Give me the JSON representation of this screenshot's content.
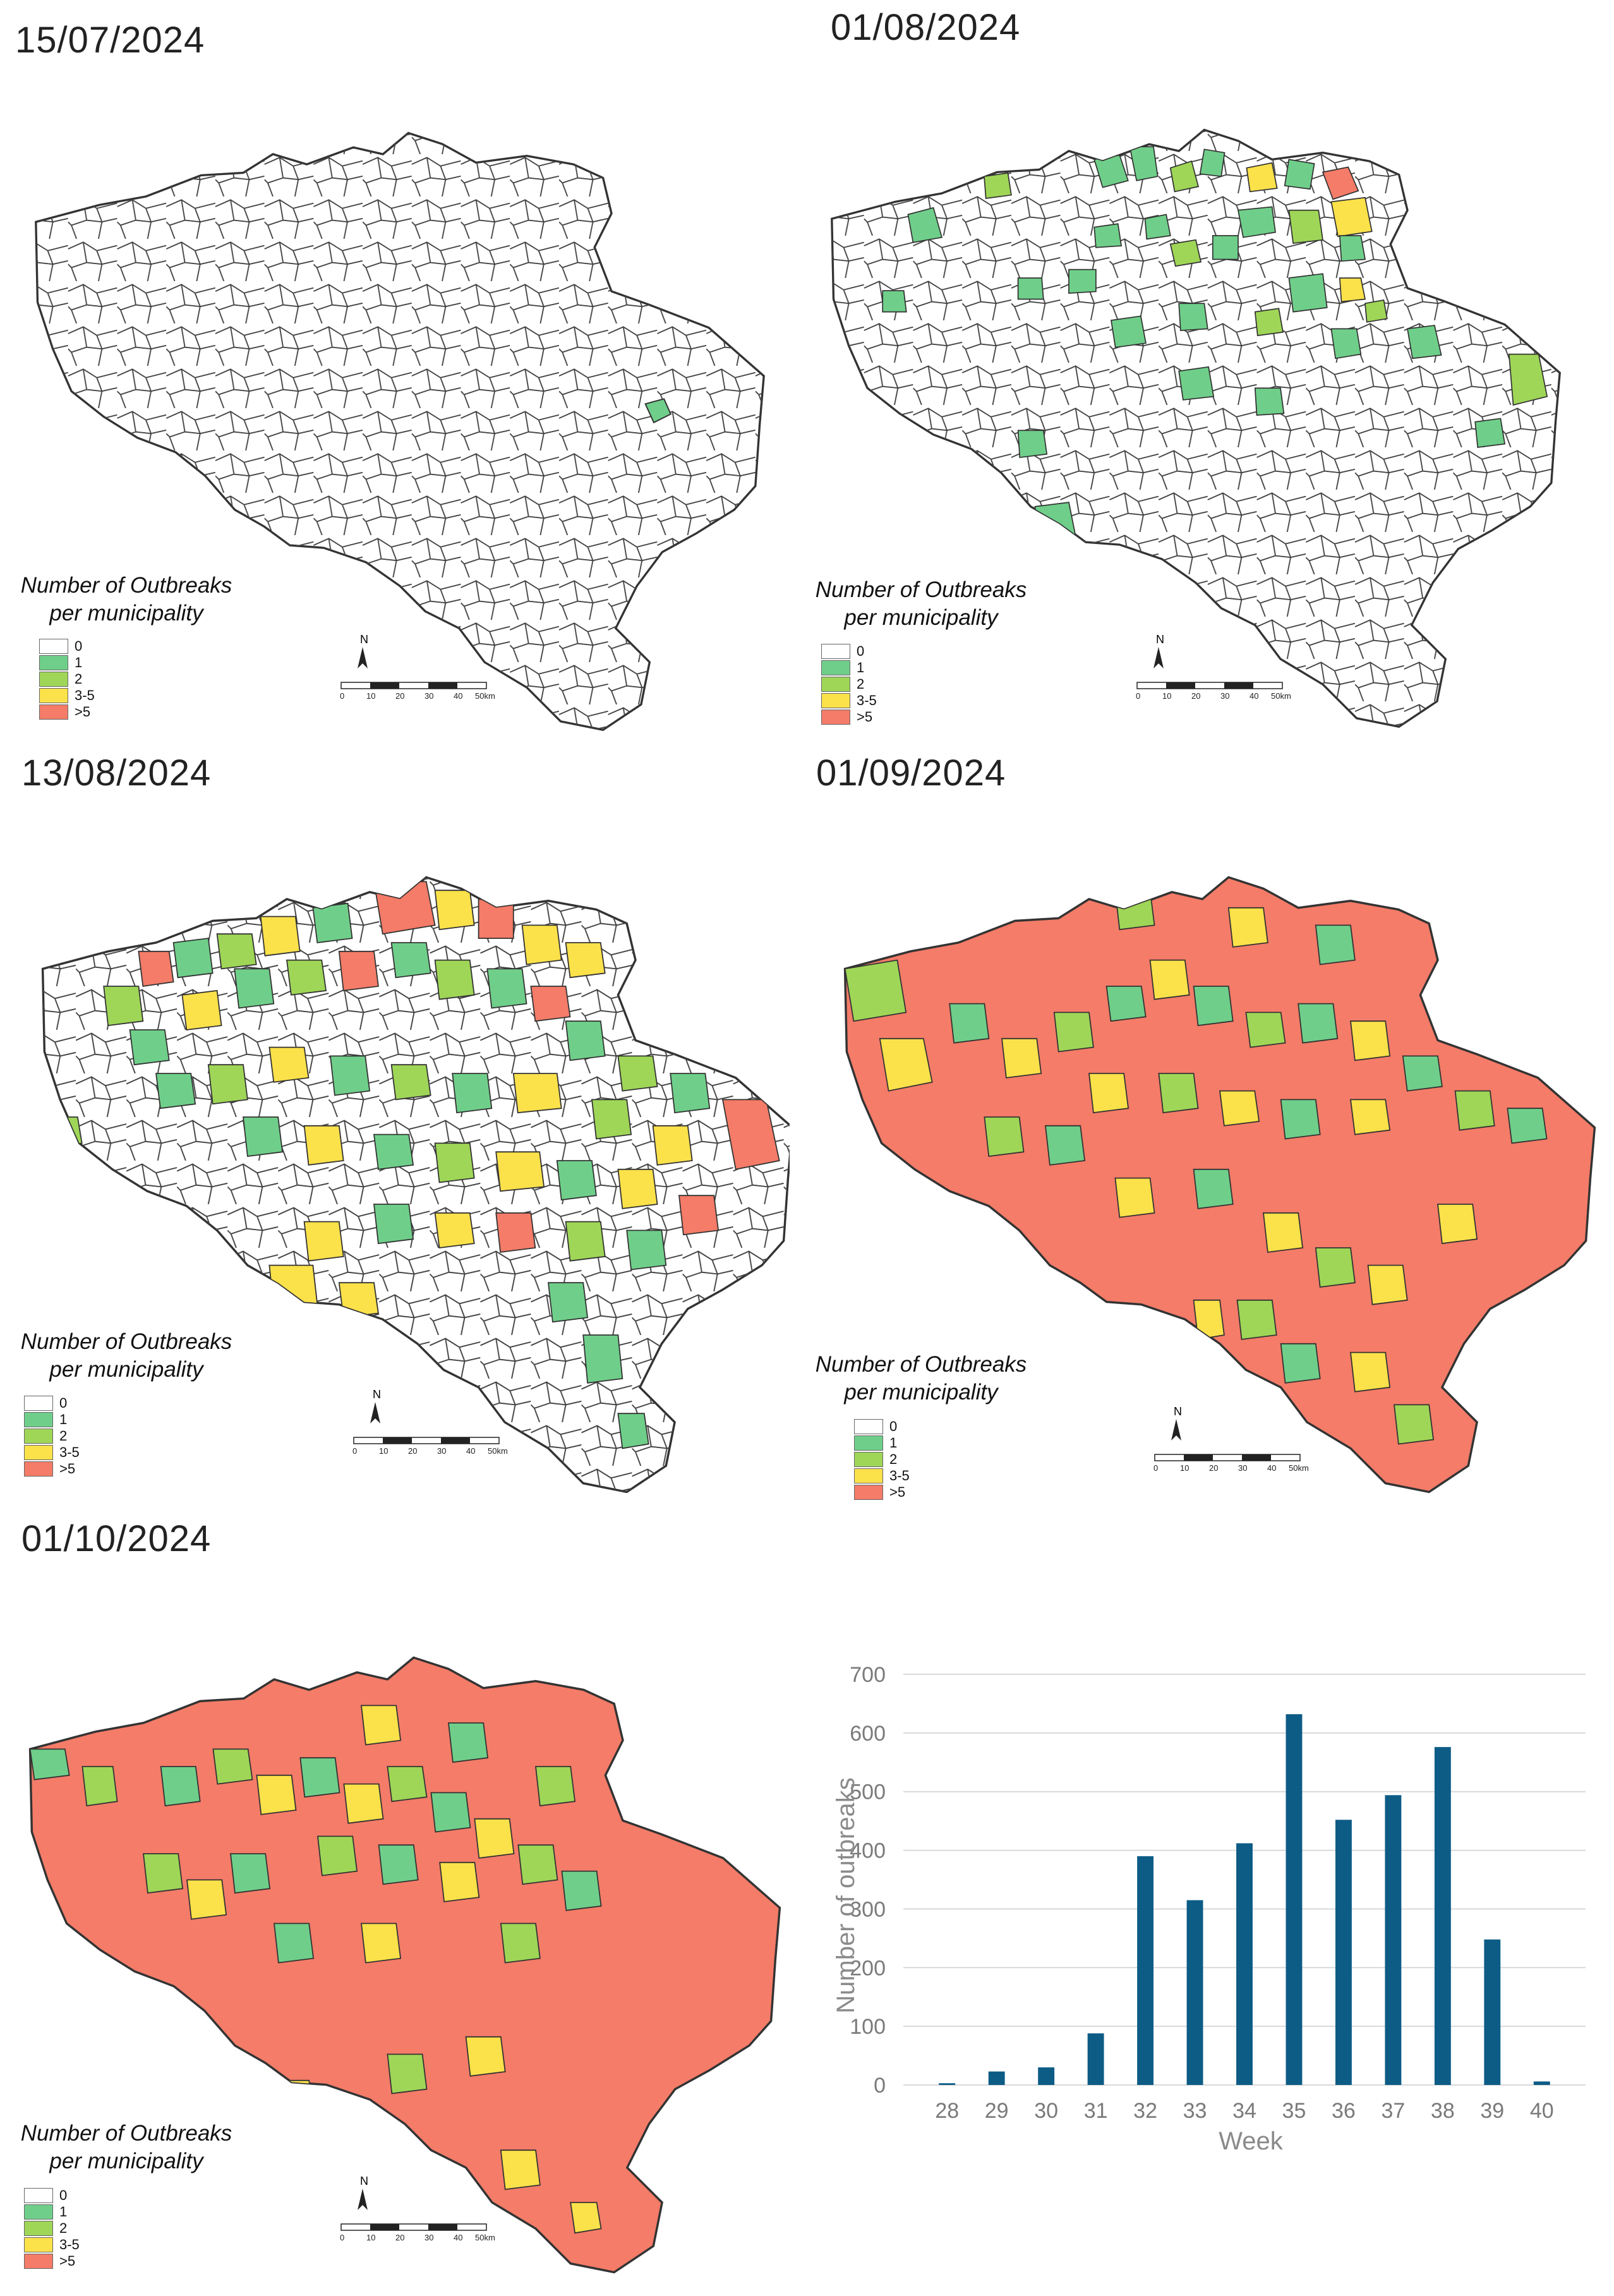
{
  "panels": [
    {
      "date": "15/07/2024"
    },
    {
      "date": "01/08/2024"
    },
    {
      "date": "13/08/2024"
    },
    {
      "date": "01/09/2024"
    },
    {
      "date": "01/10/2024"
    }
  ],
  "legend": {
    "title_line1": "Number of Outbreaks",
    "title_line2": "per municipality",
    "items": [
      {
        "label": "0",
        "color": "#ffffff"
      },
      {
        "label": "1",
        "color": "#6fcf8a"
      },
      {
        "label": "2",
        "color": "#9fd657"
      },
      {
        "label": "3-5",
        "color": "#fbe14a"
      },
      {
        "label": ">5",
        "color": "#f47c68"
      }
    ]
  },
  "scalebar": {
    "north": "N",
    "ticks": [
      "0",
      "10",
      "20",
      "30",
      "40",
      "50km"
    ]
  },
  "chart_data": {
    "type": "bar",
    "categories": [
      "28",
      "29",
      "30",
      "31",
      "32",
      "33",
      "34",
      "35",
      "36",
      "37",
      "38",
      "39",
      "40"
    ],
    "values": [
      3,
      23,
      30,
      88,
      390,
      315,
      412,
      632,
      452,
      494,
      576,
      248,
      6
    ],
    "xlabel": "Week",
    "ylabel": "Number of outbreaks",
    "ylim": [
      0,
      700
    ],
    "yticks": [
      "0",
      "100",
      "200",
      "300",
      "400",
      "500",
      "600",
      "700"
    ],
    "grid": true,
    "color": "#0d5c86"
  }
}
